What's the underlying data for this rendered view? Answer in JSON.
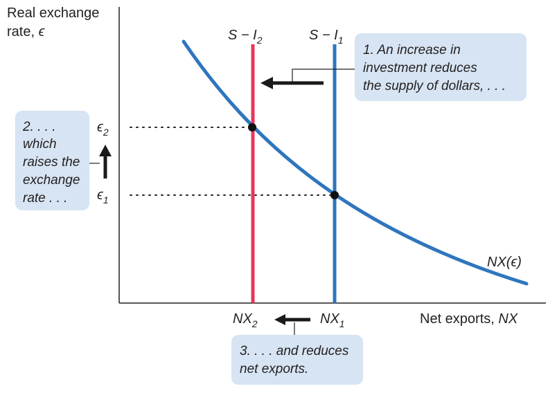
{
  "axes": {
    "y_label_line1": "Real exchange",
    "y_label_line2_text": "rate, ",
    "y_label_line2_symbol": "ϵ",
    "x_label_text": "Net exports, ",
    "x_label_symbol": "NX"
  },
  "curve": {
    "label": "NX(ϵ)",
    "color": "#2f75be"
  },
  "lines": {
    "s_minus_i1": {
      "main": "S − I",
      "sub": "1",
      "color": "#2f75be"
    },
    "s_minus_i2": {
      "main": "S − I",
      "sub": "2",
      "color": "#e8365a"
    }
  },
  "y_ticks": {
    "epsilon1": {
      "main": "ϵ",
      "sub": "1"
    },
    "epsilon2": {
      "main": "ϵ",
      "sub": "2"
    }
  },
  "x_ticks": {
    "nx1": {
      "main": "NX",
      "sub": "1"
    },
    "nx2": {
      "main": "NX",
      "sub": "2"
    }
  },
  "notes": {
    "note1": [
      "1. An increase in",
      "investment reduces",
      "the supply of dollars, . . ."
    ],
    "note2": [
      "2. . . .",
      "which",
      "raises the",
      "exchange",
      "rate . . ."
    ],
    "note3": [
      "3. . . . and reduces",
      "net exports."
    ]
  },
  "colors": {
    "note_fill": "#d6e4f3",
    "arrow": "#1a1a1a",
    "axis": "#231f20"
  }
}
